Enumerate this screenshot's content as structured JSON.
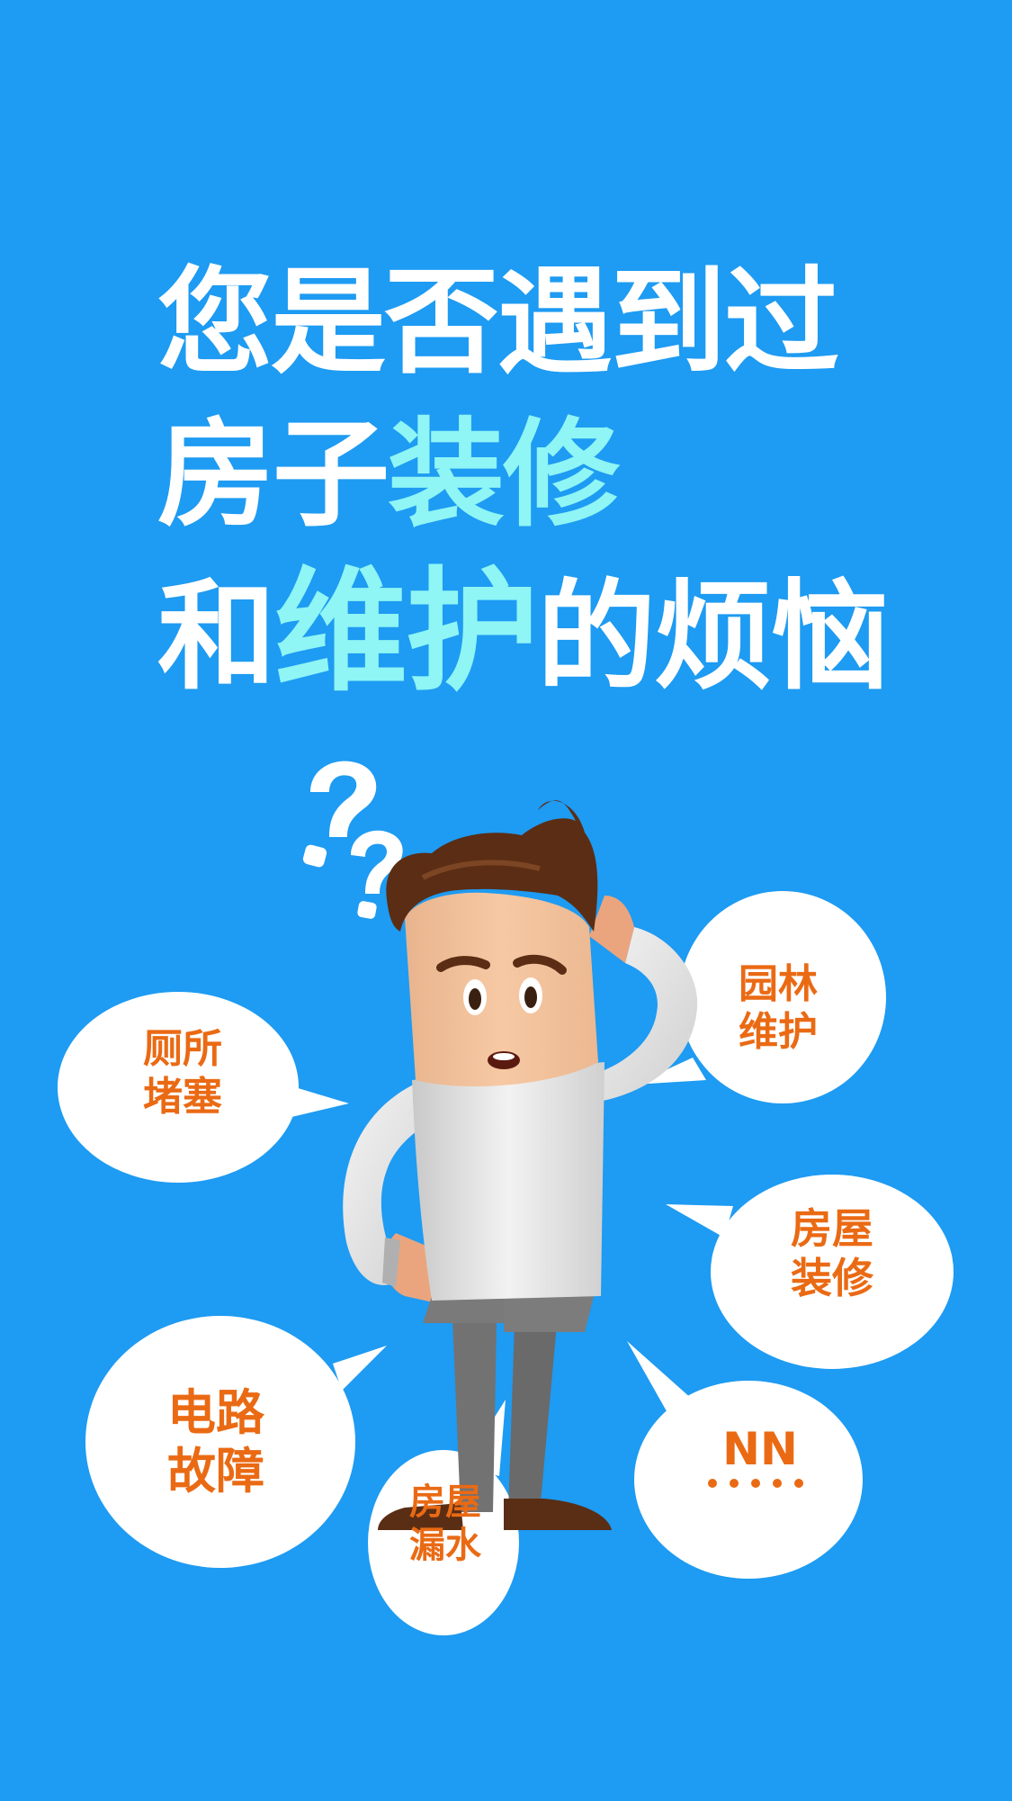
{
  "headline": {
    "line1": "您是否遇到过",
    "line2_plain": "房子",
    "line2_highlight": "装修",
    "line3_plain_start": "和",
    "line3_highlight": "维护",
    "line3_plain_end": "的烦恼"
  },
  "bubbles": {
    "toilet": [
      "厕所",
      "堵塞"
    ],
    "garden": [
      "园林",
      "维护"
    ],
    "renovation": [
      "房屋",
      "装修"
    ],
    "circuit": [
      "电路",
      "故障"
    ],
    "leak": [
      "房屋",
      "漏水"
    ],
    "more": "NN"
  },
  "colors": {
    "background": "#1e9bf2",
    "headline_white": "#ffffff",
    "headline_highlight": "#8ff5f5",
    "bubble_text": "#ea6a14",
    "bubble_fill": "#ffffff"
  },
  "icons": {
    "question_marks": "question-mark-icon",
    "character": "confused-man-illustration"
  }
}
